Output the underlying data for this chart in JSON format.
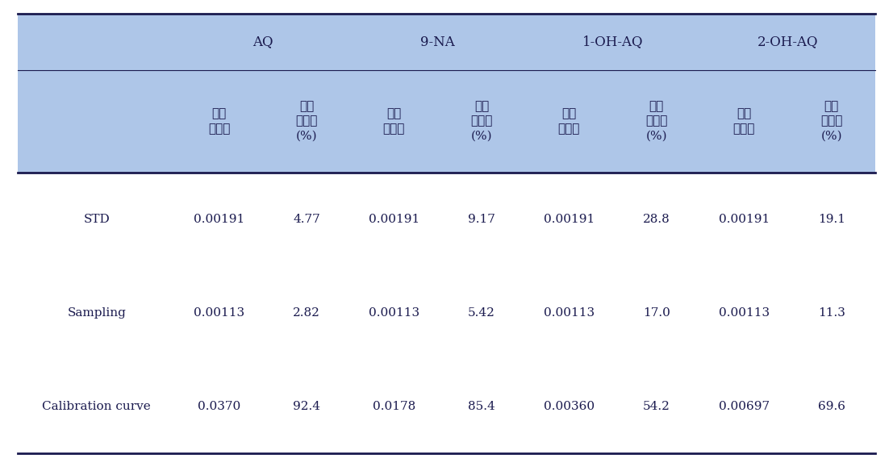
{
  "header_groups": [
    "AQ",
    "9-NA",
    "1-OH-AQ",
    "2-OH-AQ"
  ],
  "subheaders": [
    [
      "상대\n불확도",
      "상대\n기여도\n(%)"
    ],
    [
      "상대\n불확도",
      "상대\n기여도\n(%)"
    ],
    [
      "상대\n불확도",
      "상대\n기여도\n(%)"
    ],
    [
      "상대\n불확도",
      "상대\n기여도\n(%)"
    ]
  ],
  "row_labels": [
    "STD",
    "Sampling",
    "Calibration curve"
  ],
  "table_data": [
    [
      "0.00191",
      "4.77",
      "0.00191",
      "9.17",
      "0.00191",
      "28.8",
      "0.00191",
      "19.1"
    ],
    [
      "0.00113",
      "2.82",
      "0.00113",
      "5.42",
      "0.00113",
      "17.0",
      "0.00113",
      "11.3"
    ],
    [
      "0.0370",
      "92.4",
      "0.0178",
      "85.4",
      "0.00360",
      "54.2",
      "0.00697",
      "69.6"
    ]
  ],
  "header_bg_color": "#aec6e8",
  "subheader_bg_color": "#aec6e8",
  "body_bg_color": "#ffffff",
  "text_color": "#1a1a4e",
  "header_line_color": "#1a1a4e",
  "font_size": 11,
  "header_font_size": 12
}
